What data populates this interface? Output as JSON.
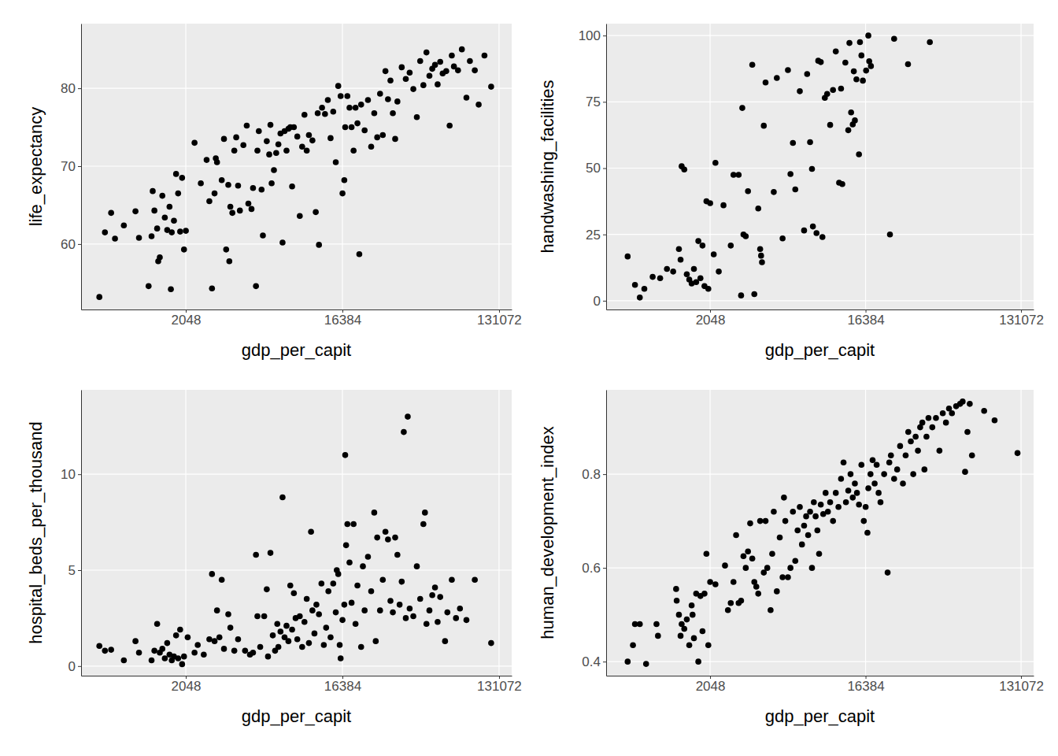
{
  "chart_data": [
    {
      "type": "scatter",
      "x_label": "gdp_per_capit",
      "y_label": "life_expectancy",
      "log": "x",
      "grid": true,
      "color": "#000000",
      "xlim": [
        510,
        155000
      ],
      "ylim": [
        51.6,
        88.3
      ],
      "xticks": [
        2048,
        16384,
        131072
      ],
      "yticks": [
        60,
        70,
        80
      ],
      "x": [
        650,
        700,
        760,
        800,
        900,
        1050,
        1100,
        1250,
        1300,
        1320,
        1350,
        1400,
        1420,
        1450,
        1500,
        1550,
        1600,
        1650,
        1680,
        1700,
        1750,
        1800,
        1850,
        1900,
        1950,
        2000,
        2050,
        2300,
        2500,
        2700,
        2800,
        2900,
        3000,
        3050,
        3100,
        3300,
        3400,
        3500,
        3600,
        3650,
        3700,
        3800,
        3900,
        4000,
        4100,
        4200,
        4400,
        4600,
        4700,
        4900,
        5000,
        5200,
        5300,
        5400,
        5600,
        5700,
        6000,
        6200,
        6300,
        6400,
        6600,
        6800,
        7000,
        7200,
        7400,
        7600,
        7800,
        8000,
        8200,
        8400,
        8600,
        9000,
        9300,
        9600,
        9900,
        10200,
        10500,
        11000,
        11500,
        11800,
        12000,
        12500,
        13000,
        13500,
        14000,
        14500,
        15000,
        15500,
        16000,
        16400,
        16800,
        17000,
        17500,
        18000,
        18500,
        19000,
        19500,
        20000,
        20500,
        21000,
        22000,
        23000,
        24000,
        25000,
        26000,
        27000,
        28000,
        29000,
        30000,
        31000,
        32000,
        33000,
        34000,
        36000,
        38000,
        40000,
        42000,
        44000,
        46000,
        48000,
        50000,
        52000,
        54000,
        56000,
        58000,
        60000,
        62000,
        65000,
        68000,
        70000,
        72000,
        76000,
        80000,
        85000,
        89000,
        95000,
        100000,
        108000,
        118000
      ],
      "values": [
        53.2,
        61.5,
        64,
        60.7,
        62.4,
        64.2,
        60.8,
        54.6,
        61,
        66.8,
        64.3,
        62,
        57.8,
        58.3,
        66.2,
        63.4,
        61.8,
        64.8,
        54.2,
        61.5,
        63,
        69,
        66.5,
        61.6,
        68.5,
        59.3,
        61.7,
        73,
        67.8,
        70.8,
        65.5,
        54.3,
        66.5,
        71,
        70.5,
        68.2,
        73.5,
        59.3,
        67.6,
        57.8,
        64.8,
        64,
        72,
        73.7,
        67.5,
        64.3,
        72.7,
        75.2,
        65.2,
        64.5,
        67.2,
        54.6,
        72,
        74.5,
        67,
        61.1,
        73.2,
        71.5,
        75.3,
        67.8,
        69.5,
        71.7,
        72.8,
        74.2,
        60.2,
        74.5,
        72,
        74.8,
        75,
        67.4,
        75,
        73.8,
        63.6,
        72.5,
        76.6,
        72,
        74,
        73.3,
        64.1,
        76.8,
        59.9,
        77.5,
        76.7,
        78.5,
        73.6,
        77,
        70.5,
        80.3,
        79,
        66.5,
        68.2,
        75,
        79,
        77.5,
        75,
        72,
        77.5,
        75.5,
        58.7,
        77.9,
        74.6,
        78.5,
        72.5,
        76.8,
        73.7,
        79.3,
        74,
        82.2,
        78.6,
        81,
        76.8,
        73.5,
        78.3,
        82.7,
        81.2,
        82,
        79.9,
        76.3,
        83.5,
        80.4,
        84.6,
        81.6,
        82.5,
        83,
        80.5,
        83.4,
        81.9,
        82.2,
        75.2,
        84.2,
        82.8,
        82.3,
        85,
        78.8,
        83.5,
        82.3,
        77.9,
        84.2,
        80.2
      ]
    },
    {
      "type": "scatter",
      "x_label": "gdp_per_capit",
      "y_label": "handwashing_facilities",
      "log": "x",
      "grid": true,
      "color": "#000000",
      "xlim": [
        510,
        155000
      ],
      "ylim": [
        -3.3,
        104.5
      ],
      "xticks": [
        2048,
        16384,
        131072
      ],
      "yticks": [
        0,
        25,
        50,
        75,
        100
      ],
      "x": [
        680,
        750,
        800,
        850,
        950,
        1050,
        1150,
        1250,
        1350,
        1380,
        1400,
        1450,
        1500,
        1550,
        1600,
        1650,
        1700,
        1750,
        1800,
        1850,
        1900,
        1950,
        2000,
        2050,
        2150,
        2200,
        2300,
        2450,
        2700,
        2800,
        3000,
        3100,
        3150,
        3200,
        3300,
        3400,
        3600,
        3700,
        3900,
        4000,
        4050,
        4100,
        4200,
        4300,
        4800,
        5000,
        5400,
        5800,
        6000,
        6200,
        6400,
        6800,
        7200,
        7500,
        7800,
        8000,
        8100,
        8500,
        8700,
        9000,
        9200,
        9500,
        9800,
        10200,
        10600,
        11000,
        11500,
        11800,
        12500,
        13000,
        13500,
        13200,
        12000,
        13800,
        14000,
        14200,
        14500,
        15200,
        15000,
        15500,
        15800,
        17000,
        16500,
        17200,
        17600,
        22700,
        24000,
        28900,
        38700
      ],
      "values": [
        16.7,
        6,
        1.2,
        4.5,
        9,
        8.5,
        12,
        11,
        19.5,
        15.5,
        50.7,
        49.5,
        10,
        8,
        6.5,
        12,
        7,
        22.5,
        8.5,
        20.8,
        5.5,
        37.5,
        4.5,
        36.8,
        17.5,
        52,
        11,
        36,
        20.8,
        47.5,
        47.5,
        2,
        72.7,
        25,
        24.3,
        41.3,
        89,
        2.5,
        34.8,
        19.5,
        17,
        14.5,
        66,
        82.3,
        41,
        84,
        23.5,
        87,
        47.8,
        59.5,
        42,
        79,
        26.5,
        85.5,
        59.8,
        49.7,
        28,
        25.5,
        90.5,
        90,
        24,
        76.5,
        78,
        66.3,
        79.5,
        94,
        44.5,
        80,
        89.8,
        64.3,
        71,
        97.2,
        44,
        66.5,
        86.5,
        68,
        83.5,
        97.5,
        55.2,
        92.5,
        83,
        100,
        86.8,
        90.3,
        88.5,
        25,
        98.8,
        89.2,
        97.5
      ]
    },
    {
      "type": "scatter",
      "x_label": "gdp_per_capit",
      "y_label": "hospital_beds_per_thousand",
      "log": "x",
      "grid": true,
      "color": "#000000",
      "xlim": [
        510,
        155000
      ],
      "ylim": [
        -0.5,
        14.4
      ],
      "xticks": [
        2048,
        16384,
        131072
      ],
      "yticks": [
        0,
        5,
        10
      ],
      "x": [
        650,
        700,
        760,
        900,
        1050,
        1100,
        1300,
        1350,
        1400,
        1450,
        1500,
        1550,
        1600,
        1650,
        1700,
        1750,
        1800,
        1850,
        1900,
        1950,
        2000,
        2100,
        2300,
        2400,
        2600,
        2800,
        2900,
        3000,
        3100,
        3200,
        3300,
        3400,
        3600,
        3700,
        3900,
        4100,
        4500,
        4800,
        5000,
        5200,
        5300,
        5500,
        5800,
        6000,
        6100,
        6300,
        6500,
        6700,
        6900,
        7000,
        7200,
        7400,
        7600,
        7800,
        8000,
        8200,
        8400,
        8600,
        8800,
        9000,
        9300,
        9600,
        9900,
        10200,
        10500,
        10800,
        11000,
        11300,
        11600,
        12000,
        12400,
        12800,
        13200,
        13600,
        14000,
        14500,
        15000,
        15200,
        15500,
        15800,
        16000,
        16400,
        16800,
        17000,
        17200,
        17500,
        18000,
        18500,
        19000,
        19500,
        20000,
        21000,
        21500,
        22000,
        23000,
        24000,
        25000,
        25500,
        26000,
        27000,
        28000,
        29000,
        30000,
        31000,
        32000,
        33000,
        34000,
        35000,
        36000,
        37000,
        38000,
        39000,
        40000,
        42000,
        44000,
        46000,
        48000,
        49000,
        50000,
        52000,
        54000,
        56000,
        58000,
        60000,
        64000,
        66000,
        70000,
        74000,
        78000,
        85000,
        95000,
        118000
      ],
      "values": [
        1.05,
        0.8,
        0.85,
        0.3,
        1.3,
        0.7,
        0.3,
        0.8,
        2.2,
        0.7,
        0.9,
        0.4,
        1.2,
        0.6,
        0.3,
        0.5,
        1.6,
        0.4,
        1.9,
        0.1,
        0.5,
        1.5,
        0.7,
        1.1,
        0.6,
        1.4,
        4.8,
        1.3,
        2.9,
        1.5,
        4.5,
        0.9,
        2.7,
        2,
        0.8,
        1.4,
        0.8,
        0.6,
        0.7,
        5.8,
        2.6,
        1,
        2.6,
        4,
        0.5,
        5.9,
        1.6,
        0.8,
        2.2,
        1,
        1.8,
        8.8,
        1.5,
        2.1,
        1.3,
        4.2,
        1.9,
        3.8,
        2.5,
        1.4,
        2.6,
        1,
        2.3,
        3.5,
        1.2,
        7,
        2.9,
        1.7,
        3.2,
        2.7,
        4.3,
        1.1,
        2,
        3.9,
        1.5,
        4.3,
        2.8,
        5,
        4.8,
        1.1,
        0.4,
        2.4,
        3.2,
        11,
        6.3,
        7.4,
        5.4,
        3.3,
        7.4,
        2.2,
        4.2,
        1,
        5.2,
        2.9,
        5.7,
        3.9,
        8,
        1.3,
        6.7,
        2.9,
        4.5,
        7,
        6.6,
        3.4,
        2.8,
        6.7,
        5.8,
        3.2,
        4.4,
        12.2,
        2.5,
        13,
        3,
        2.6,
        5.2,
        3.5,
        7.4,
        8,
        2.2,
        2.9,
        3.7,
        4.1,
        2.3,
        3.6,
        1.3,
        2.8,
        4.5,
        2.5,
        3,
        2.4,
        4.5,
        1.2
      ]
    },
    {
      "type": "scatter",
      "x_label": "gdp_per_capit",
      "y_label": "human_development_index",
      "log": "x",
      "grid": true,
      "color": "#000000",
      "xlim": [
        510,
        155000
      ],
      "ylim": [
        0.37,
        0.98
      ],
      "xticks": [
        2048,
        16384,
        131072
      ],
      "yticks": [
        0.4,
        0.6,
        0.8
      ],
      "x": [
        680,
        730,
        750,
        800,
        870,
        1000,
        1020,
        1300,
        1310,
        1350,
        1380,
        1400,
        1450,
        1500,
        1550,
        1600,
        1620,
        1650,
        1700,
        1750,
        1800,
        1850,
        1900,
        1950,
        2000,
        2050,
        2200,
        2500,
        2600,
        2700,
        2800,
        2900,
        3000,
        3100,
        3200,
        3300,
        3400,
        3500,
        3600,
        3700,
        3800,
        3900,
        4000,
        4200,
        4300,
        4400,
        4600,
        4700,
        4800,
        5000,
        5200,
        5400,
        5500,
        5600,
        5800,
        6000,
        6200,
        6400,
        6600,
        6800,
        7000,
        7200,
        7400,
        7600,
        7800,
        8000,
        8200,
        8400,
        8600,
        8800,
        9000,
        9300,
        9600,
        9900,
        10200,
        10600,
        11000,
        11400,
        11800,
        12200,
        12600,
        13000,
        13400,
        13800,
        14200,
        14600,
        15000,
        15500,
        16000,
        16400,
        16800,
        17000,
        17500,
        18000,
        18500,
        19000,
        19500,
        20000,
        21000,
        22000,
        22500,
        23000,
        24000,
        25000,
        26000,
        27000,
        28000,
        29000,
        30000,
        31000,
        32000,
        33000,
        34000,
        35000,
        36000,
        37000,
        38000,
        40000,
        42000,
        44000,
        46000,
        48000,
        50000,
        52000,
        55000,
        58000,
        60000,
        62000,
        64000,
        66000,
        68000,
        80000,
        92000,
        125000
      ],
      "values": [
        0.4,
        0.435,
        0.48,
        0.48,
        0.395,
        0.48,
        0.455,
        0.555,
        0.53,
        0.5,
        0.455,
        0.48,
        0.47,
        0.49,
        0.435,
        0.52,
        0.5,
        0.45,
        0.545,
        0.4,
        0.54,
        0.465,
        0.545,
        0.63,
        0.435,
        0.57,
        0.565,
        0.605,
        0.51,
        0.525,
        0.57,
        0.67,
        0.525,
        0.53,
        0.625,
        0.6,
        0.635,
        0.695,
        0.62,
        0.57,
        0.56,
        0.545,
        0.7,
        0.59,
        0.7,
        0.6,
        0.51,
        0.63,
        0.72,
        0.55,
        0.665,
        0.58,
        0.75,
        0.7,
        0.58,
        0.6,
        0.72,
        0.615,
        0.68,
        0.73,
        0.65,
        0.69,
        0.71,
        0.67,
        0.72,
        0.6,
        0.74,
        0.71,
        0.68,
        0.63,
        0.735,
        0.715,
        0.76,
        0.72,
        0.74,
        0.7,
        0.76,
        0.73,
        0.79,
        0.825,
        0.74,
        0.765,
        0.8,
        0.75,
        0.78,
        0.76,
        0.735,
        0.82,
        0.7,
        0.73,
        0.675,
        0.77,
        0.8,
        0.83,
        0.78,
        0.82,
        0.76,
        0.74,
        0.8,
        0.59,
        0.825,
        0.84,
        0.79,
        0.81,
        0.86,
        0.78,
        0.84,
        0.89,
        0.87,
        0.8,
        0.88,
        0.85,
        0.9,
        0.91,
        0.81,
        0.88,
        0.92,
        0.9,
        0.92,
        0.85,
        0.93,
        0.91,
        0.94,
        0.93,
        0.945,
        0.95,
        0.955,
        0.805,
        0.89,
        0.95,
        0.84,
        0.935,
        0.915,
        0.845
      ]
    }
  ]
}
